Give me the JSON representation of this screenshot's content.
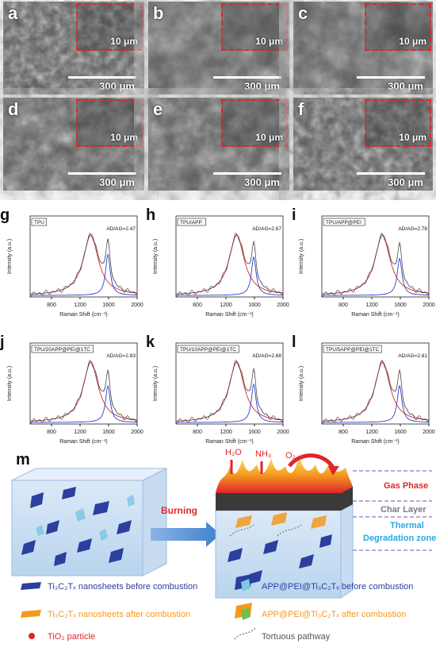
{
  "sem_panels": [
    {
      "label": "a",
      "inset_scale": "10 μm",
      "scale": "300 μm"
    },
    {
      "label": "b",
      "inset_scale": "10 μm",
      "scale": "300 μm"
    },
    {
      "label": "c",
      "inset_scale": "10 μm",
      "scale": "300 μm"
    },
    {
      "label": "d",
      "inset_scale": "10 μm",
      "scale": "300 μm"
    },
    {
      "label": "e",
      "inset_scale": "10 μm",
      "scale": "300 μm"
    },
    {
      "label": "f",
      "inset_scale": "10 μm",
      "scale": "300 μm"
    }
  ],
  "raman_panels": [
    {
      "label": "g",
      "sample": "TPU",
      "ratio": "A<sub>D</sub>/A<sub>G</sub>=2.47",
      "ratio_text": "AD/AG=2.47",
      "ratio_value": 2.47
    },
    {
      "label": "h",
      "sample": "TPU/APP",
      "ratio_text": "AD/AG=2.67",
      "ratio_value": 2.67
    },
    {
      "label": "i",
      "sample": "TPU/APP@PEI",
      "ratio_text": "AD/AG=2.78",
      "ratio_value": 2.78
    },
    {
      "label": "j",
      "sample": "TPU/20APP@PEI@1TC",
      "ratio_text": "AD/AG=2.83",
      "ratio_value": 2.83
    },
    {
      "label": "k",
      "sample": "TPU/10APP@PEI@1TC",
      "ratio_text": "AD/AG=2.68",
      "ratio_value": 2.68
    },
    {
      "label": "l",
      "sample": "TPU/5APP@PEI@1TC",
      "ratio_text": "AD/AG=2.81",
      "ratio_value": 2.81
    }
  ],
  "raman_axes": {
    "xlabel": "Raman Shift (cm⁻¹)",
    "ylabel": "Intensity (a.u.)",
    "xticks": [
      "800",
      "1200",
      "1600",
      "2000"
    ]
  },
  "schematic": {
    "label": "m",
    "arrow_label": "Burning",
    "gas_H2O": "H₂O",
    "gas_NH3": "NH₃",
    "gas_O2": "O₂",
    "zone_gas": "Gas Phase",
    "zone_char": "Char Layer",
    "zone_thermal_1": "Thermal",
    "zone_thermal_2": "Degradation zone",
    "colors": {
      "gas": "#e0262a",
      "char": "#7a7a7a",
      "thermal": "#2aa8e0"
    }
  },
  "legend": {
    "item1": "Ti₃C₂Tₓ nanosheets before combustion",
    "item2": "Ti₃C₂Tₓ nanosheets after combustion",
    "item3": "TiO₂ particle",
    "item4": "APP@PEI@Ti₃C₂Tₓ before combustion",
    "item5": "APP@PEI@Ti₃C₂Tₓ after combustion",
    "item6": "Tortuous pathway",
    "colors": {
      "blue": "#2b3f9e",
      "orange": "#f39a1e",
      "red": "#e0262a",
      "grey": "#555555"
    }
  }
}
